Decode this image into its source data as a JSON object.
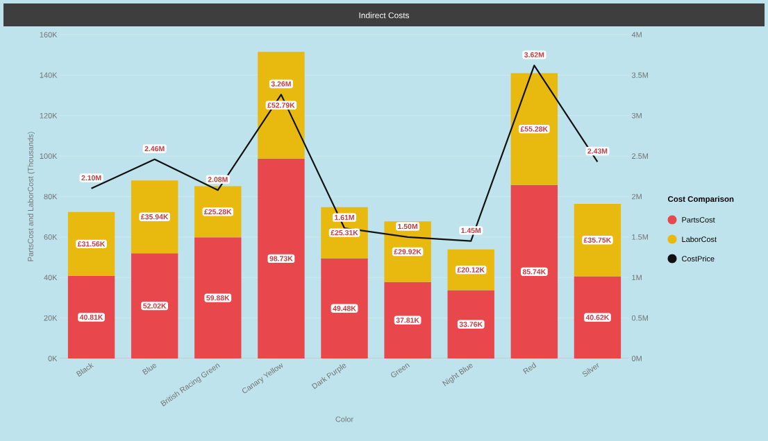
{
  "chart_data": {
    "type": "bar",
    "stacked": true,
    "title": "Indirect Costs",
    "xlabel": "Color",
    "ylabel": "PartsCost and LaborCost (Thousands)",
    "legend_title": "Cost Comparison",
    "legend": "right",
    "grid": "y",
    "marker": "none",
    "line_style": "solid",
    "categories": [
      "Black",
      "Blue",
      "British Racing Green",
      "Canary Yellow",
      "Dark Purple",
      "Green",
      "Night Blue",
      "Red",
      "Silver"
    ],
    "series": [
      {
        "name": "PartsCost",
        "color": "#e8484c",
        "values": [
          40810,
          52020,
          59880,
          98730,
          49480,
          37810,
          33760,
          85740,
          40620
        ],
        "value_labels": [
          "40.81K",
          "52.02K",
          "59.88K",
          "98.73K",
          "49.48K",
          "37.81K",
          "33.76K",
          "85.74K",
          "40.62K"
        ]
      },
      {
        "name": "LaborCost",
        "color": "#e8b90f",
        "values": [
          31560,
          35940,
          25280,
          52790,
          25310,
          29920,
          20120,
          55280,
          35750
        ],
        "value_labels": [
          "£31.56K",
          "£35.94K",
          "£25.28K",
          "£52.79K",
          "£25.31K",
          "£29.92K",
          "£20.12K",
          "£55.28K",
          "£35.75K"
        ]
      },
      {
        "name": "CostPrice",
        "color": "#111111",
        "type": "line",
        "axis": "y2",
        "values": [
          2100000,
          2460000,
          2080000,
          3260000,
          1610000,
          1500000,
          1450000,
          3620000,
          2430000
        ],
        "value_labels": [
          "2.10M",
          "2.46M",
          "2.08M",
          "3.26M",
          "1.61M",
          "1.50M",
          "1.45M",
          "3.62M",
          "2.43M"
        ]
      }
    ],
    "ylim": [
      0,
      160000
    ],
    "yticks": [
      {
        "value": 0,
        "label": "0K"
      },
      {
        "value": 20000,
        "label": "20K"
      },
      {
        "value": 40000,
        "label": "40K"
      },
      {
        "value": 60000,
        "label": "60K"
      },
      {
        "value": 80000,
        "label": "80K"
      },
      {
        "value": 100000,
        "label": "100K"
      },
      {
        "value": 120000,
        "label": "120K"
      },
      {
        "value": 140000,
        "label": "140K"
      },
      {
        "value": 160000,
        "label": "160K"
      }
    ],
    "y2lim": [
      0,
      4000000
    ],
    "y2ticks": [
      {
        "value": 0,
        "label": "0M"
      },
      {
        "value": 500000,
        "label": "0.5M"
      },
      {
        "value": 1000000,
        "label": "1M"
      },
      {
        "value": 1500000,
        "label": "1.5M"
      },
      {
        "value": 2000000,
        "label": "2M"
      },
      {
        "value": 2500000,
        "label": "2.5M"
      },
      {
        "value": 3000000,
        "label": "3M"
      },
      {
        "value": 3500000,
        "label": "3.5M"
      },
      {
        "value": 4000000,
        "label": "4M"
      }
    ]
  }
}
